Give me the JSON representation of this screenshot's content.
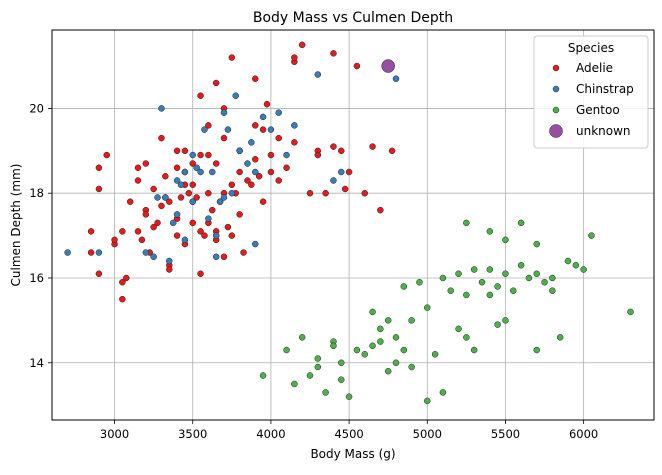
{
  "chart_data": {
    "type": "scatter",
    "title": "Body Mass vs Culmen Depth",
    "xlabel": "Body Mass (g)",
    "ylabel": "Culmen Depth (mm)",
    "xlim": [
      2600,
      6450
    ],
    "ylim": [
      12.65,
      21.85
    ],
    "xticks": [
      3000,
      3500,
      4000,
      4500,
      5000,
      5500,
      6000
    ],
    "yticks": [
      14,
      16,
      18,
      20
    ],
    "grid": true,
    "legend": {
      "title": "Species",
      "position": "top-right"
    },
    "series": [
      {
        "name": "Adelie",
        "color": "#e41a1c",
        "size": "small",
        "points": [
          [
            2850,
            17.1
          ],
          [
            2850,
            16.6
          ],
          [
            2900,
            18.1
          ],
          [
            2900,
            16.1
          ],
          [
            2900,
            18.6
          ],
          [
            2950,
            18.9
          ],
          [
            3000,
            16.8
          ],
          [
            3000,
            16.9
          ],
          [
            3050,
            17.1
          ],
          [
            3050,
            15.5
          ],
          [
            3050,
            15.9
          ],
          [
            3075,
            16.0
          ],
          [
            3100,
            17.8
          ],
          [
            3150,
            18.6
          ],
          [
            3150,
            18.3
          ],
          [
            3150,
            17.1
          ],
          [
            3175,
            16.9
          ],
          [
            3200,
            17.6
          ],
          [
            3200,
            17.5
          ],
          [
            3200,
            18.7
          ],
          [
            3225,
            16.6
          ],
          [
            3250,
            17.2
          ],
          [
            3250,
            18.1
          ],
          [
            3275,
            17.3
          ],
          [
            3300,
            19.3
          ],
          [
            3300,
            17.7
          ],
          [
            3325,
            18.4
          ],
          [
            3325,
            17.9
          ],
          [
            3350,
            17.8
          ],
          [
            3350,
            16.3
          ],
          [
            3350,
            16.2
          ],
          [
            3400,
            18.6
          ],
          [
            3400,
            17.4
          ],
          [
            3400,
            19.0
          ],
          [
            3400,
            17.0
          ],
          [
            3425,
            17.9
          ],
          [
            3450,
            18.5
          ],
          [
            3450,
            19.0
          ],
          [
            3450,
            18.2
          ],
          [
            3450,
            16.8
          ],
          [
            3475,
            18.0
          ],
          [
            3500,
            18.7
          ],
          [
            3500,
            17.8
          ],
          [
            3500,
            18.2
          ],
          [
            3500,
            17.3
          ],
          [
            3525,
            17.9
          ],
          [
            3550,
            20.3
          ],
          [
            3550,
            17.1
          ],
          [
            3550,
            16.1
          ],
          [
            3550,
            18.9
          ],
          [
            3575,
            17.0
          ],
          [
            3600,
            18.9
          ],
          [
            3600,
            18.0
          ],
          [
            3600,
            17.3
          ],
          [
            3600,
            19.6
          ],
          [
            3625,
            17.6
          ],
          [
            3650,
            20.6
          ],
          [
            3650,
            18.7
          ],
          [
            3650,
            17.1
          ],
          [
            3650,
            16.9
          ],
          [
            3675,
            17.8
          ],
          [
            3700,
            19.3
          ],
          [
            3700,
            20.0
          ],
          [
            3700,
            18.0
          ],
          [
            3700,
            16.5
          ],
          [
            3725,
            17.2
          ],
          [
            3750,
            18.2
          ],
          [
            3750,
            21.2
          ],
          [
            3750,
            17.0
          ],
          [
            3775,
            18.0
          ],
          [
            3800,
            19.0
          ],
          [
            3800,
            17.5
          ],
          [
            3800,
            18.5
          ],
          [
            3825,
            16.6
          ],
          [
            3850,
            18.3
          ],
          [
            3875,
            18.2
          ],
          [
            3900,
            19.6
          ],
          [
            3900,
            18.8
          ],
          [
            3900,
            20.7
          ],
          [
            3925,
            18.4
          ],
          [
            3950,
            19.5
          ],
          [
            3950,
            17.8
          ],
          [
            3975,
            20.1
          ],
          [
            4000,
            18.9
          ],
          [
            4000,
            18.5
          ],
          [
            4050,
            18.3
          ],
          [
            4050,
            19.3
          ],
          [
            4100,
            18.6
          ],
          [
            4150,
            21.1
          ],
          [
            4150,
            21.2
          ],
          [
            4150,
            19.2
          ],
          [
            4200,
            21.5
          ],
          [
            4250,
            18.0
          ],
          [
            4300,
            19.0
          ],
          [
            4300,
            18.9
          ],
          [
            4350,
            18.0
          ],
          [
            4400,
            21.3
          ],
          [
            4400,
            19.1
          ],
          [
            4450,
            19.0
          ],
          [
            4475,
            18.1
          ],
          [
            4500,
            18.5
          ],
          [
            4550,
            21.0
          ],
          [
            4600,
            18.0
          ],
          [
            4650,
            19.1
          ],
          [
            4700,
            17.6
          ],
          [
            4775,
            19.0
          ]
        ]
      },
      {
        "name": "Chinstrap",
        "color": "#377eb8",
        "size": "small",
        "points": [
          [
            2700,
            16.6
          ],
          [
            2900,
            16.6
          ],
          [
            3200,
            16.6
          ],
          [
            3250,
            16.5
          ],
          [
            3275,
            17.9
          ],
          [
            3300,
            20.0
          ],
          [
            3325,
            17.9
          ],
          [
            3350,
            16.4
          ],
          [
            3375,
            17.3
          ],
          [
            3400,
            17.5
          ],
          [
            3400,
            18.3
          ],
          [
            3425,
            18.2
          ],
          [
            3450,
            18.5
          ],
          [
            3450,
            16.9
          ],
          [
            3500,
            17.8
          ],
          [
            3500,
            18.9
          ],
          [
            3525,
            18.6
          ],
          [
            3550,
            18.5
          ],
          [
            3575,
            19.5
          ],
          [
            3600,
            17.4
          ],
          [
            3625,
            18.5
          ],
          [
            3650,
            16.5
          ],
          [
            3650,
            17.0
          ],
          [
            3675,
            17.8
          ],
          [
            3700,
            19.9
          ],
          [
            3700,
            17.9
          ],
          [
            3725,
            19.5
          ],
          [
            3750,
            18.0
          ],
          [
            3775,
            20.3
          ],
          [
            3800,
            19.0
          ],
          [
            3850,
            18.7
          ],
          [
            3875,
            19.2
          ],
          [
            3900,
            16.8
          ],
          [
            3900,
            18.5
          ],
          [
            3950,
            19.8
          ],
          [
            4000,
            19.5
          ],
          [
            4050,
            19.9
          ],
          [
            4100,
            18.9
          ],
          [
            4150,
            19.6
          ],
          [
            4300,
            20.8
          ],
          [
            4400,
            18.3
          ],
          [
            4450,
            18.5
          ],
          [
            4800,
            20.7
          ]
        ]
      },
      {
        "name": "Gentoo",
        "color": "#4daf4a",
        "size": "small",
        "points": [
          [
            3950,
            13.7
          ],
          [
            4100,
            14.3
          ],
          [
            4150,
            13.5
          ],
          [
            4200,
            14.6
          ],
          [
            4250,
            13.7
          ],
          [
            4300,
            13.9
          ],
          [
            4300,
            14.1
          ],
          [
            4350,
            13.3
          ],
          [
            4400,
            14.5
          ],
          [
            4400,
            14.4
          ],
          [
            4450,
            13.6
          ],
          [
            4450,
            14.0
          ],
          [
            4500,
            13.2
          ],
          [
            4550,
            14.3
          ],
          [
            4600,
            14.2
          ],
          [
            4650,
            15.2
          ],
          [
            4650,
            14.4
          ],
          [
            4700,
            14.8
          ],
          [
            4700,
            14.5
          ],
          [
            4750,
            13.8
          ],
          [
            4750,
            15.0
          ],
          [
            4800,
            14.6
          ],
          [
            4800,
            14.0
          ],
          [
            4850,
            15.8
          ],
          [
            4850,
            14.3
          ],
          [
            4900,
            15.0
          ],
          [
            4900,
            13.9
          ],
          [
            4950,
            15.9
          ],
          [
            5000,
            15.3
          ],
          [
            5000,
            13.1
          ],
          [
            5050,
            14.2
          ],
          [
            5100,
            16.0
          ],
          [
            5100,
            13.3
          ],
          [
            5150,
            15.7
          ],
          [
            5200,
            16.1
          ],
          [
            5200,
            14.8
          ],
          [
            5250,
            15.6
          ],
          [
            5250,
            14.6
          ],
          [
            5300,
            16.2
          ],
          [
            5300,
            14.3
          ],
          [
            5350,
            15.9
          ],
          [
            5400,
            15.6
          ],
          [
            5400,
            16.2
          ],
          [
            5450,
            15.8
          ],
          [
            5450,
            14.9
          ],
          [
            5500,
            16.1
          ],
          [
            5500,
            15.0
          ],
          [
            5550,
            15.7
          ],
          [
            5600,
            16.3
          ],
          [
            5650,
            16.0
          ],
          [
            5700,
            16.1
          ],
          [
            5700,
            14.3
          ],
          [
            5750,
            15.9
          ],
          [
            5800,
            16.0
          ],
          [
            5850,
            14.6
          ],
          [
            5900,
            16.4
          ],
          [
            5950,
            16.3
          ],
          [
            6000,
            16.2
          ],
          [
            6050,
            17.0
          ],
          [
            6300,
            15.2
          ],
          [
            5250,
            17.3
          ],
          [
            5600,
            17.3
          ],
          [
            5500,
            16.9
          ],
          [
            5400,
            17.1
          ],
          [
            5700,
            16.8
          ],
          [
            5800,
            15.7
          ]
        ]
      },
      {
        "name": "unknown",
        "color": "#984ea3",
        "size": "large",
        "points": [
          [
            4750,
            21.0
          ]
        ]
      }
    ]
  }
}
